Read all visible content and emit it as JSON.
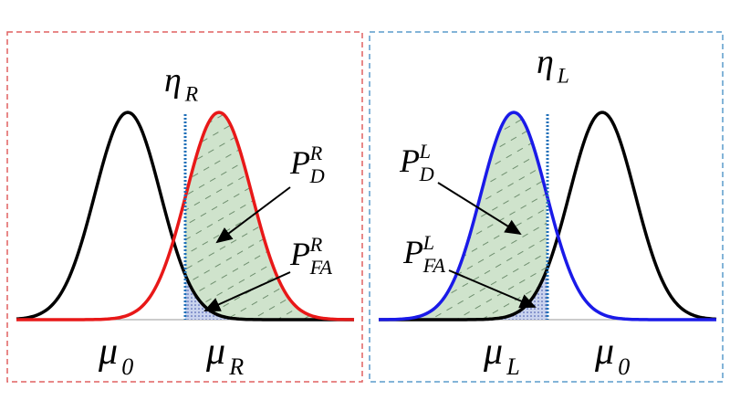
{
  "left_panel": {
    "threshold": {
      "symbol": "η",
      "sub": "R"
    },
    "detection": {
      "symbol": "P",
      "sub": "D",
      "sup": "R"
    },
    "false_alarm": {
      "symbol": "P",
      "sub": "FA",
      "sup": "R"
    },
    "mean_null": {
      "symbol": "μ",
      "sub": "0"
    },
    "mean_alt": {
      "symbol": "μ",
      "sub": "R"
    }
  },
  "right_panel": {
    "threshold": {
      "symbol": "η",
      "sub": "L"
    },
    "detection": {
      "symbol": "P",
      "sub": "D",
      "sup": "L"
    },
    "false_alarm": {
      "symbol": "P",
      "sub": "FA",
      "sup": "L"
    },
    "mean_null": {
      "symbol": "μ",
      "sub": "0"
    },
    "mean_alt": {
      "symbol": "μ",
      "sub": "L"
    }
  }
}
